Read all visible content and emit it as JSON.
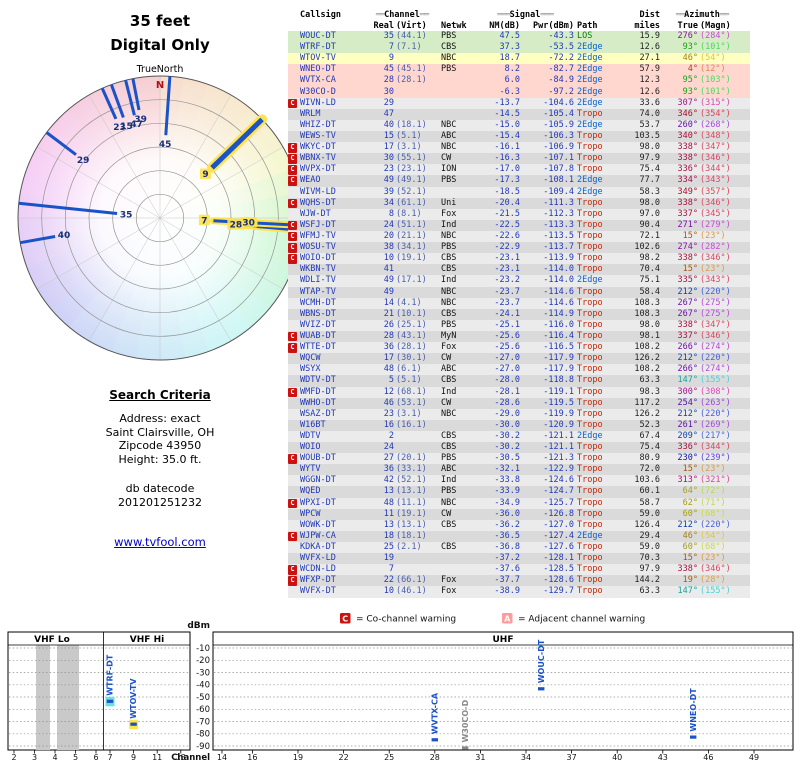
{
  "radar": {
    "title_line1": "35 feet",
    "title_line2": "Digital Only",
    "north_label": "TrueNorth",
    "north_letter": "N",
    "stations": [
      {
        "label": "45",
        "az": 4,
        "nm": 8.2,
        "highlight": false,
        "thick": false
      },
      {
        "label": "9",
        "az": 46,
        "nm": 18.7,
        "highlight": true,
        "thick": true
      },
      {
        "label": "7",
        "az": 93,
        "nm": 37.3,
        "highlight": true,
        "thick": false
      },
      {
        "label": "28",
        "az": 95,
        "nm": 6.0,
        "highlight": true,
        "thick": false
      },
      {
        "label": "30",
        "az": 93,
        "nm": -6.3,
        "highlight": true,
        "thick": false
      },
      {
        "label": "35",
        "az": 276,
        "nm": 47.5,
        "highlight": false,
        "thick": false
      },
      {
        "label": "40",
        "az": 260,
        "nm": -15.0,
        "highlight": false,
        "thick": false
      },
      {
        "label": "29",
        "az": 307,
        "nm": -13.7,
        "highlight": false,
        "thick": false
      },
      {
        "label": "15",
        "az": 340,
        "nm": -15.4,
        "highlight": false,
        "thick": false
      },
      {
        "label": "47",
        "az": 346,
        "nm": -14.5,
        "highlight": false,
        "thick": false
      },
      {
        "label": "39",
        "az": 349,
        "nm": -18.5,
        "highlight": false,
        "thick": false
      },
      {
        "label": "23",
        "az": 336,
        "nm": -17.0,
        "highlight": false,
        "thick": false
      }
    ]
  },
  "search": {
    "heading": "Search Criteria",
    "lines": [
      "Address: exact",
      "Saint Clairsville, OH",
      "Zipcode 43950",
      "Height: 35.0 ft."
    ],
    "db_label": "db datecode",
    "db_code": "201201251232",
    "link": "www.tvfool.com"
  },
  "legend": {
    "c_letter": "C",
    "c_text": "= Co-channel warning",
    "a_letter": "A",
    "a_text": "= Adjacent channel warning"
  },
  "table": {
    "group_headers": {
      "callsign": "Callsign",
      "channel": "Channel",
      "signal": "Signal",
      "dist": "Dist",
      "azimuth": "Azimuth"
    },
    "col_headers": {
      "real": "Real",
      "virt": "(Virt)",
      "netwk": "Netwk",
      "nm": "NM(dB)",
      "pwr": "Pwr(dBm)",
      "path": "Path",
      "miles": "miles",
      "true": "True",
      "magn": "(Magn)"
    },
    "rows": [
      [
        "",
        "WOUC-DT",
        "35",
        "(44.1)",
        "PBS",
        "47.5",
        "-43.3",
        "LOS",
        "15.9",
        276,
        284,
        "green"
      ],
      [
        "",
        "WTRF-DT",
        "7",
        "(7.1)",
        "CBS",
        "37.3",
        "-53.5",
        "2Edge",
        "12.6",
        93,
        101,
        "green"
      ],
      [
        "",
        "WTOV-TV",
        "9",
        "",
        "NBC",
        "18.7",
        "-72.2",
        "2Edge",
        "27.1",
        46,
        54,
        "yellow"
      ],
      [
        "",
        "WNEO-DT",
        "45",
        "(45.1)",
        "PBS",
        "8.2",
        "-82.7",
        "2Edge",
        "57.9",
        4,
        12,
        "pink"
      ],
      [
        "",
        "WVTX-CA",
        "28",
        "(28.1)",
        "",
        "6.0",
        "-84.9",
        "2Edge",
        "12.3",
        95,
        103,
        "pink"
      ],
      [
        "",
        "W30CO-D",
        "30",
        "",
        "",
        "-6.3",
        "-97.2",
        "2Edge",
        "12.6",
        93,
        101,
        "pink"
      ],
      [
        "C",
        "WIVN-LD",
        "29",
        "",
        "",
        "-13.7",
        "-104.6",
        "2Edge",
        "33.6",
        307,
        315,
        ""
      ],
      [
        "",
        "WRLM",
        "47",
        "",
        "",
        "-14.5",
        "-105.4",
        "Tropo",
        "74.0",
        346,
        354,
        ""
      ],
      [
        "",
        "WHIZ-DT",
        "40",
        "(18.1)",
        "NBC",
        "-15.0",
        "-105.9",
        "2Edge",
        "53.7",
        260,
        268,
        ""
      ],
      [
        "",
        "WEWS-TV",
        "15",
        "(5.1)",
        "ABC",
        "-15.4",
        "-106.3",
        "Tropo",
        "103.5",
        340,
        348,
        ""
      ],
      [
        "C",
        "WKYC-DT",
        "17",
        "(3.1)",
        "NBC",
        "-16.1",
        "-106.9",
        "Tropo",
        "98.0",
        338,
        347,
        ""
      ],
      [
        "C",
        "WBNX-TV",
        "30",
        "(55.1)",
        "CW",
        "-16.3",
        "-107.1",
        "Tropo",
        "97.9",
        338,
        346,
        ""
      ],
      [
        "C",
        "WVPX-DT",
        "23",
        "(23.1)",
        "ION",
        "-17.0",
        "-107.8",
        "Tropo",
        "75.4",
        336,
        344,
        ""
      ],
      [
        "C",
        "WEAO",
        "49",
        "(49.1)",
        "PBS",
        "-17.3",
        "-108.1",
        "2Edge",
        "77.7",
        334,
        343,
        ""
      ],
      [
        "",
        "WIVM-LD",
        "39",
        "(52.1)",
        "",
        "-18.5",
        "-109.4",
        "2Edge",
        "58.3",
        349,
        357,
        ""
      ],
      [
        "C",
        "WQHS-DT",
        "34",
        "(61.1)",
        "Uni",
        "-20.4",
        "-111.3",
        "Tropo",
        "98.0",
        338,
        346,
        ""
      ],
      [
        "",
        "WJW-DT",
        "8",
        "(8.1)",
        "Fox",
        "-21.5",
        "-112.3",
        "Tropo",
        "97.0",
        337,
        345,
        ""
      ],
      [
        "C",
        "WSFJ-DT",
        "24",
        "(51.1)",
        "Ind",
        "-22.5",
        "-113.3",
        "Tropo",
        "90.4",
        271,
        279,
        ""
      ],
      [
        "C",
        "WFMJ-TV",
        "20",
        "(21.1)",
        "NBC",
        "-22.6",
        "-113.5",
        "Tropo",
        "72.1",
        15,
        23,
        ""
      ],
      [
        "C",
        "WOSU-TV",
        "38",
        "(34.1)",
        "PBS",
        "-22.9",
        "-113.7",
        "Tropo",
        "102.6",
        274,
        282,
        ""
      ],
      [
        "C",
        "WOIO-DT",
        "10",
        "(19.1)",
        "CBS",
        "-23.1",
        "-113.9",
        "Tropo",
        "98.2",
        338,
        346,
        ""
      ],
      [
        "",
        "WKBN-TV",
        "41",
        "",
        "CBS",
        "-23.1",
        "-114.0",
        "Tropo",
        "70.4",
        15,
        23,
        ""
      ],
      [
        "",
        "WDLI-TV",
        "49",
        "(17.1)",
        "Ind",
        "-23.2",
        "-114.0",
        "2Edge",
        "75.1",
        335,
        343,
        ""
      ],
      [
        "",
        "WTAP-TV",
        "49",
        "",
        "NBC",
        "-23.7",
        "-114.6",
        "Tropo",
        "58.4",
        212,
        220,
        ""
      ],
      [
        "",
        "WCMH-DT",
        "14",
        "(4.1)",
        "NBC",
        "-23.7",
        "-114.6",
        "Tropo",
        "108.3",
        267,
        275,
        ""
      ],
      [
        "",
        "WBNS-DT",
        "21",
        "(10.1)",
        "CBS",
        "-24.1",
        "-114.9",
        "Tropo",
        "108.3",
        267,
        275,
        ""
      ],
      [
        "",
        "WVIZ-DT",
        "26",
        "(25.1)",
        "PBS",
        "-25.1",
        "-116.0",
        "Tropo",
        "98.0",
        338,
        347,
        ""
      ],
      [
        "C",
        "WUAB-DT",
        "28",
        "(43.1)",
        "MyN",
        "-25.6",
        "-116.4",
        "Tropo",
        "98.1",
        337,
        346,
        ""
      ],
      [
        "C",
        "WTTE-DT",
        "36",
        "(28.1)",
        "Fox",
        "-25.6",
        "-116.5",
        "Tropo",
        "108.2",
        266,
        274,
        ""
      ],
      [
        "",
        "WQCW",
        "17",
        "(30.1)",
        "CW",
        "-27.0",
        "-117.9",
        "Tropo",
        "126.2",
        212,
        220,
        ""
      ],
      [
        "",
        "WSYX",
        "48",
        "(6.1)",
        "ABC",
        "-27.0",
        "-117.9",
        "Tropo",
        "108.2",
        266,
        274,
        ""
      ],
      [
        "",
        "WDTV-DT",
        "5",
        "(5.1)",
        "CBS",
        "-28.0",
        "-118.8",
        "Tropo",
        "63.3",
        147,
        155,
        ""
      ],
      [
        "C",
        "WMFD-DT",
        "12",
        "(68.1)",
        "Ind",
        "-28.1",
        "-119.1",
        "Tropo",
        "98.3",
        300,
        308,
        ""
      ],
      [
        "",
        "WWHO-DT",
        "46",
        "(53.1)",
        "CW",
        "-28.6",
        "-119.5",
        "Tropo",
        "117.2",
        254,
        263,
        ""
      ],
      [
        "",
        "WSAZ-DT",
        "23",
        "(3.1)",
        "NBC",
        "-29.0",
        "-119.9",
        "Tropo",
        "126.2",
        212,
        220,
        ""
      ],
      [
        "",
        "W16BT",
        "16",
        "(16.1)",
        "",
        "-30.0",
        "-120.9",
        "Tropo",
        "52.3",
        261,
        269,
        ""
      ],
      [
        "",
        "WDTV",
        "2",
        "",
        "CBS",
        "-30.2",
        "-121.1",
        "2Edge",
        "67.4",
        209,
        217,
        ""
      ],
      [
        "",
        "WOIO",
        "24",
        "",
        "CBS",
        "-30.2",
        "-121.1",
        "Tropo",
        "75.4",
        336,
        344,
        ""
      ],
      [
        "C",
        "WOUB-DT",
        "27",
        "(20.1)",
        "PBS",
        "-30.5",
        "-121.3",
        "Tropo",
        "80.9",
        230,
        239,
        ""
      ],
      [
        "",
        "WYTV",
        "36",
        "(33.1)",
        "ABC",
        "-32.1",
        "-122.9",
        "Tropo",
        "72.0",
        15,
        23,
        ""
      ],
      [
        "",
        "WGGN-DT",
        "42",
        "(52.1)",
        "Ind",
        "-33.8",
        "-124.6",
        "Tropo",
        "103.6",
        313,
        321,
        ""
      ],
      [
        "",
        "WQED",
        "13",
        "(13.1)",
        "PBS",
        "-33.9",
        "-124.7",
        "Tropo",
        "60.1",
        64,
        72,
        ""
      ],
      [
        "C",
        "WPXI-DT",
        "48",
        "(11.1)",
        "NBC",
        "-34.9",
        "-125.7",
        "Tropo",
        "58.7",
        62,
        71,
        ""
      ],
      [
        "",
        "WPCW",
        "11",
        "(19.1)",
        "CW",
        "-36.0",
        "-126.8",
        "Tropo",
        "59.0",
        60,
        68,
        ""
      ],
      [
        "",
        "WOWK-DT",
        "13",
        "(13.1)",
        "CBS",
        "-36.2",
        "-127.0",
        "Tropo",
        "126.4",
        212,
        220,
        ""
      ],
      [
        "C",
        "WJPW-CA",
        "18",
        "(18.1)",
        "",
        "-36.5",
        "-127.4",
        "2Edge",
        "29.4",
        46,
        54,
        ""
      ],
      [
        "",
        "KDKA-DT",
        "25",
        "(2.1)",
        "CBS",
        "-36.8",
        "-127.6",
        "Tropo",
        "59.0",
        60,
        68,
        ""
      ],
      [
        "",
        "WVFX-LD",
        "19",
        "",
        "",
        "-37.2",
        "-128.1",
        "Tropo",
        "70.3",
        15,
        23,
        ""
      ],
      [
        "C",
        "WCDN-LD",
        "7",
        "",
        "",
        "-37.6",
        "-128.5",
        "Tropo",
        "97.9",
        338,
        346,
        ""
      ],
      [
        "C",
        "WFXP-DT",
        "22",
        "(66.1)",
        "Fox",
        "-37.7",
        "-128.6",
        "Tropo",
        "144.2",
        19,
        28,
        ""
      ],
      [
        "",
        "WVFX-DT",
        "10",
        "(46.1)",
        "Fox",
        "-38.9",
        "-129.7",
        "Tropo",
        "63.3",
        147,
        155,
        ""
      ]
    ]
  },
  "spectrum": {
    "dbm_label": "dBm",
    "channel_label": "Channel",
    "sections": {
      "vhf_lo": "VHF Lo",
      "vhf_hi": "VHF Hi",
      "uhf": "UHF"
    },
    "y_ticks": [
      -10,
      -20,
      -30,
      -40,
      -50,
      -60,
      -70,
      -80,
      -90
    ],
    "vhf_lo_ticks": [
      2,
      3,
      4,
      5,
      6
    ],
    "vhf_hi_ticks": [
      7,
      9,
      11,
      13
    ],
    "uhf_ticks": [
      14,
      16,
      19,
      22,
      25,
      28,
      31,
      34,
      37,
      40,
      43,
      46,
      49
    ],
    "signals": [
      {
        "callsign": "WTRF-DT",
        "ch": 7,
        "pwr": -53.5,
        "band": "vhf_hi",
        "muted": false,
        "highlight": "cyan"
      },
      {
        "callsign": "WTOV-TV",
        "ch": 9,
        "pwr": -72.2,
        "band": "vhf_hi",
        "muted": false,
        "highlight": "yellow"
      },
      {
        "callsign": "WVTX-CA",
        "ch": 28,
        "pwr": -84.9,
        "band": "uhf",
        "muted": false,
        "highlight": ""
      },
      {
        "callsign": "W30CO-D",
        "ch": 30,
        "pwr": -97.2,
        "band": "uhf",
        "muted": true,
        "highlight": ""
      },
      {
        "callsign": "WOUC-DT",
        "ch": 35,
        "pwr": -43.3,
        "band": "uhf",
        "muted": false,
        "highlight": ""
      },
      {
        "callsign": "WNEO-DT",
        "ch": 45,
        "pwr": -82.7,
        "band": "uhf",
        "muted": false,
        "highlight": ""
      }
    ]
  },
  "colors": {
    "accent_blue": "#1a52c8",
    "warn_red": "#cc1111",
    "warn_pink": "#ff9b9b",
    "los_green": "#087d08",
    "edge_blue": "#0a62c8",
    "tropo_red": "#c32a0a",
    "highlight_yellow": "#ffe34d",
    "highlight_cyan": "#69e0e0"
  }
}
